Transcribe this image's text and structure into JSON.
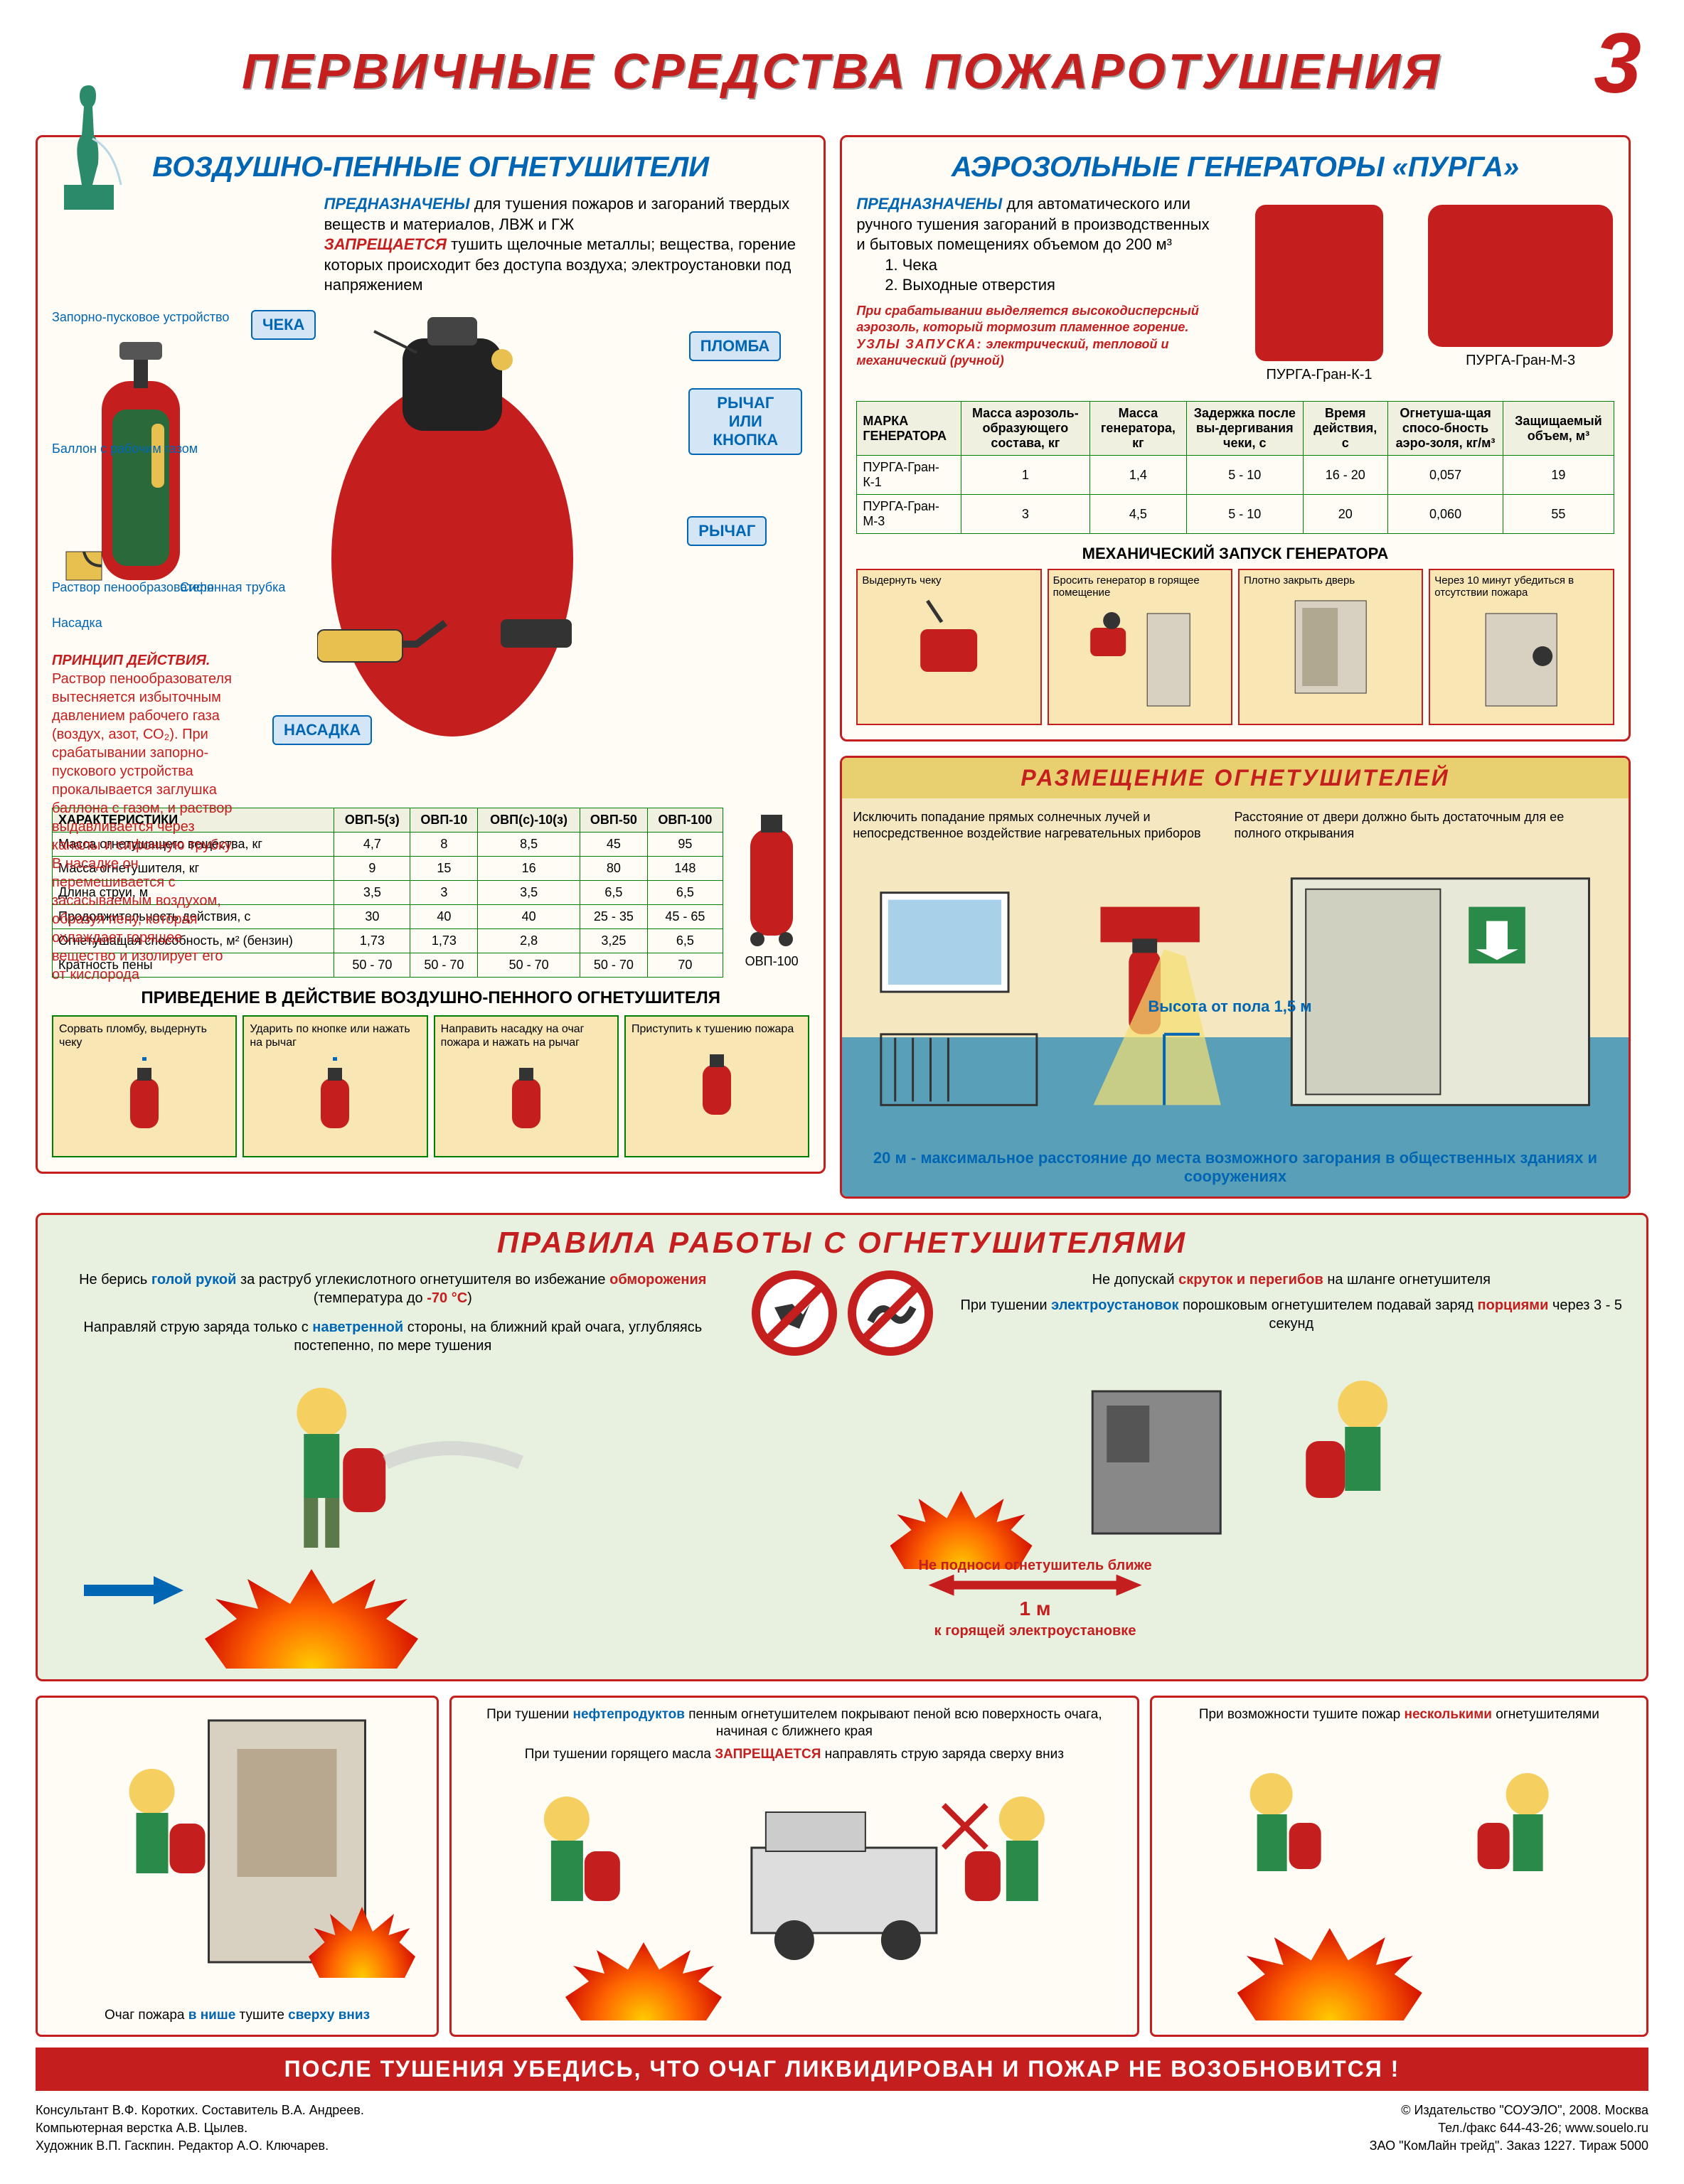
{
  "page_number": "3",
  "main_title": "ПЕРВИЧНЫЕ СРЕДСТВА ПОЖАРОТУШЕНИЯ",
  "foam": {
    "title": "ВОЗДУШНО-ПЕННЫЕ ОГНЕТУШИТЕЛИ",
    "purpose_label": "ПРЕДНАЗНАЧЕНЫ",
    "purpose_text": "для тушения пожаров и загораний твердых веществ и материалов, ЛВЖ и ГЖ",
    "forbidden_label": "ЗАПРЕЩАЕТСЯ",
    "forbidden_text": "тушить щелочные металлы; вещества, горение которых происходит без доступа воздуха; электроустановки под напряжением",
    "diagram": {
      "small_labels": {
        "l1": "Запорно-пусковое устройство",
        "l2": "Баллон с рабочим газом",
        "l3": "Раствор пенообразователя",
        "l4": "Сифонная трубка",
        "l5": "Насадка"
      },
      "callouts": {
        "c1": "ЧЕКА",
        "c2": "ПЛОМБА",
        "c3": "РЫЧАГ ИЛИ КНОПКА",
        "c4": "РЫЧАГ",
        "c5": "НАСАДКА"
      }
    },
    "principle_label": "ПРИНЦИП ДЕЙСТВИЯ.",
    "principle_text": "Раствор пенообразователя вытесняется избыточным давлением рабочего газа (воздух, азот, СО₂). При срабатывании запорно-пускового устройства прокалывается заглушка баллона с газом, и раствор выдавливается через каналы и сифонную трубку. В насадке он перемешивается с засасываемым воздухом, образуя пену, которая охлаждает горящее вещество и изолирует его от кислорода",
    "spec_caption": "ОВП-100",
    "spec_table": {
      "header": [
        "ХАРАКТЕРИСТИКИ",
        "ОВП-5(з)",
        "ОВП-10",
        "ОВП(с)-10(з)",
        "ОВП-50",
        "ОВП-100"
      ],
      "rows": [
        [
          "Масса огнетушащего вещества, кг",
          "4,7",
          "8",
          "8,5",
          "45",
          "95"
        ],
        [
          "Масса огнетушителя, кг",
          "9",
          "15",
          "16",
          "80",
          "148"
        ],
        [
          "Длина струи, м",
          "3,5",
          "3",
          "3,5",
          "6,5",
          "6,5"
        ],
        [
          "Продолжительность действия, с",
          "30",
          "40",
          "40",
          "25 - 35",
          "45 - 65"
        ],
        [
          "Огнетушащая способность, м² (бензин)",
          "1,73",
          "1,73",
          "2,8",
          "3,25",
          "6,5"
        ],
        [
          "Кратность пены",
          "50 - 70",
          "50 - 70",
          "50 - 70",
          "50 - 70",
          "70"
        ]
      ]
    },
    "steps_title": "ПРИВЕДЕНИЕ В ДЕЙСТВИЕ ВОЗДУШНО-ПЕННОГО ОГНЕТУШИТЕЛЯ",
    "steps": [
      "Сорвать пломбу, выдернуть чеку",
      "Ударить по кнопке или нажать на рычаг",
      "Направить насадку на очаг пожара и нажать на рычаг",
      "Приступить к тушению пожара"
    ]
  },
  "purga": {
    "title": "АЭРОЗОЛЬНЫЕ ГЕНЕРАТОРЫ «ПУРГА»",
    "purpose_label": "ПРЕДНАЗНАЧЕНЫ",
    "purpose_text": "для автоматического или ручного тушения загораний в производственных и бытовых помещениях объемом до 200 м³",
    "parts": {
      "p1": "1. Чека",
      "p2": "2. Выходные отверстия"
    },
    "action_text": "При срабатывании выделяется высокодисперсный аэрозоль, который тормозит пламенное горение.",
    "launch_label": "УЗЛЫ ЗАПУСКА:",
    "launch_text": "электрический, тепловой и механический (ручной)",
    "models": {
      "m1": "ПУРГА-Гран-К-1",
      "m2": "ПУРГА-Гран-М-3"
    },
    "spec_table": {
      "header": [
        "МАРКА ГЕНЕРАТОРА",
        "Масса аэрозоль-образующего состава, кг",
        "Масса генератора, кг",
        "Задержка после вы-дергивания чеки, с",
        "Время действия, с",
        "Огнетуша-щая спосо-бность аэро-золя, кг/м³",
        "Защищаемый объем, м³"
      ],
      "rows": [
        [
          "ПУРГА-Гран-К-1",
          "1",
          "1,4",
          "5 - 10",
          "16 - 20",
          "0,057",
          "19"
        ],
        [
          "ПУРГА-Гран-М-3",
          "3",
          "4,5",
          "5 - 10",
          "20",
          "0,060",
          "55"
        ]
      ]
    },
    "mech_title": "МЕХАНИЧЕСКИЙ ЗАПУСК ГЕНЕРАТОРА",
    "mech_steps": [
      "Выдернуть чеку",
      "Бросить генератор в горящее помещение",
      "Плотно закрыть дверь",
      "Через 10 минут убедиться в отсутствии пожара"
    ]
  },
  "placement": {
    "title": "РАЗМЕЩЕНИЕ ОГНЕТУШИТЕЛЕЙ",
    "text1": "Исключить попадание прямых солнечных лучей и непосредственное воздействие нагревательных приборов",
    "text2": "Расстояние от двери должно быть достаточным для ее полного открывания",
    "height_label": "Высота от пола 1,5 м",
    "distance_text": "20 м - максимальное расстояние до места возможного загорания в общественных зданиях и сооружениях"
  },
  "rules": {
    "title": "ПРАВИЛА РАБОТЫ С ОГНЕТУШИТЕЛЯМИ",
    "left": {
      "warn1_pre": "Не берись ",
      "warn1_hl": "голой рукой",
      "warn1_post": " за раструб углекислотного огнетушителя во избежание ",
      "warn1_hl2": "обморожения",
      "warn1_end": " (температура до ",
      "warn1_temp": "-70 °С",
      "warn1_close": ")",
      "dir1": "Направляй струю заряда только с ",
      "dir1_hl": "наветренной",
      "dir1_post": " стороны, на ближний край очага, углубляясь постепенно, по мере тушения"
    },
    "right": {
      "warn2_pre": "Не допускай ",
      "warn2_hl": "скруток и перегибов",
      "warn2_post": " на шланге огнетушителя",
      "dir2_pre": "При тушении ",
      "dir2_hl": "электроустановок",
      "dir2_post": " порошковым огнетушителем подавай заряд ",
      "dir2_hl2": "порциями",
      "dir2_end": " через 3 - 5 секунд",
      "dist_pre": "Не подноси огнетушитель ближе",
      "dist_val": "1 м",
      "dist_post": "к горящей электроустановке"
    }
  },
  "bottom_cells": {
    "c1": {
      "text_pre": "Очаг пожара ",
      "text_hl": "в нише",
      "text_mid": " тушите ",
      "text_hl2": "сверху вниз"
    },
    "c2": {
      "line1_pre": "При тушении ",
      "line1_hl": "нефтепродуктов",
      "line1_post": " пенным огнетушителем покрывают пеной всю поверхность очага, начиная с ближнего края",
      "line2_pre": "При тушении горящего масла ",
      "line2_hl": "ЗАПРЕЩАЕТСЯ",
      "line2_post": " направлять струю заряда сверху вниз"
    },
    "c3": {
      "text_pre": "При возможности тушите пожар ",
      "text_hl": "несколькими",
      "text_post": " огнетушителями"
    }
  },
  "footer_bar": "ПОСЛЕ ТУШЕНИЯ УБЕДИСЬ, ЧТО ОЧАГ ЛИКВИДИРОВАН И ПОЖАР НЕ ВОЗОБНОВИТСЯ !",
  "credits": {
    "left": "Консультант В.Ф. Коротких. Составитель В.А. Андреев.\nКомпьютерная верстка А.В. Цылев.\nХудожник В.П. Гаскпин. Редактор А.О. Ключарев.",
    "right": "© Издательство \"СОУЭЛО\", 2008. Москва\nТел./факс 644-43-26; www.souelo.ru\nЗАО \"КомЛайн трейд\". Заказ 1227. Тираж 5000"
  },
  "colors": {
    "red": "#c41e1e",
    "blue": "#0066b3",
    "green": "#008000",
    "yellow_bg": "#f9e6b5",
    "cream": "#fffcf5"
  }
}
